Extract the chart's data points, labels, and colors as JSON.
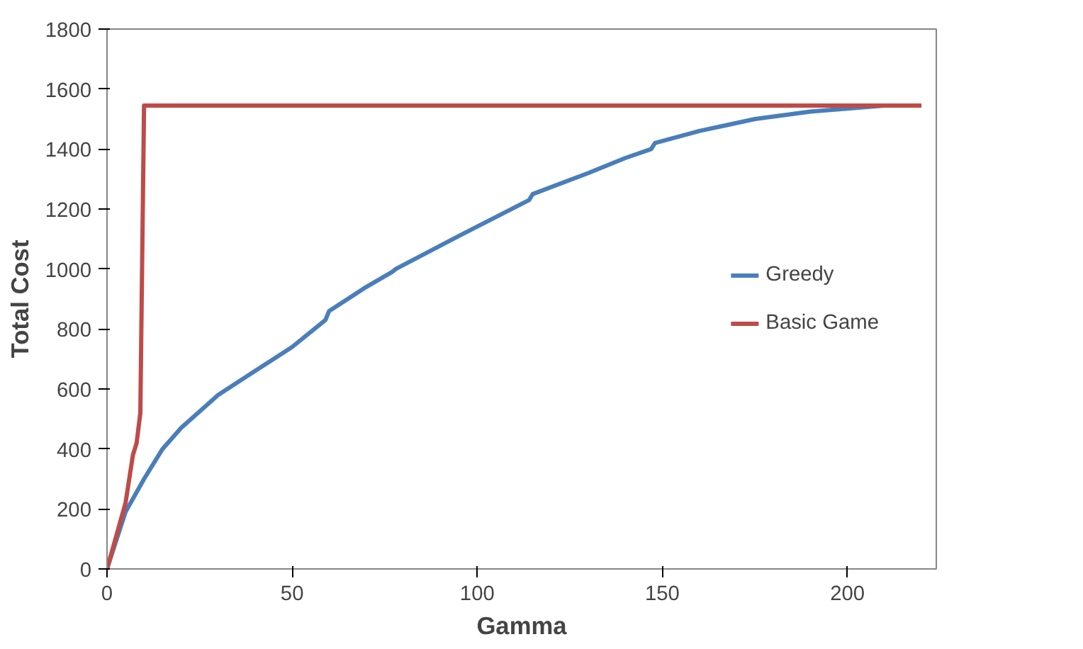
{
  "chart_data": {
    "type": "line",
    "xlabel": "Gamma",
    "ylabel": "Total Cost",
    "xlim": [
      0,
      224
    ],
    "ylim": [
      0,
      1800
    ],
    "xticks": [
      0,
      50,
      100,
      150,
      200
    ],
    "yticks": [
      0,
      200,
      400,
      600,
      800,
      1000,
      1200,
      1400,
      1600,
      1800
    ],
    "grid": false,
    "legend": "right",
    "marker": "none",
    "line_style": "solid",
    "series": [
      {
        "name": "Greedy",
        "color": "#4a7ebb",
        "x": [
          0,
          5,
          10,
          15,
          20,
          30,
          40,
          50,
          59,
          60,
          70,
          77,
          78,
          95,
          114,
          115,
          130,
          140,
          147,
          148,
          160,
          175,
          190,
          210
        ],
        "values": [
          0,
          190,
          300,
          400,
          470,
          580,
          660,
          740,
          830,
          860,
          940,
          990,
          1000,
          1110,
          1230,
          1250,
          1320,
          1370,
          1400,
          1420,
          1460,
          1500,
          1525,
          1545
        ]
      },
      {
        "name": "Basic Game",
        "color": "#be4b48",
        "x": [
          0,
          5,
          7,
          8,
          9,
          10,
          220
        ],
        "values": [
          0,
          220,
          380,
          420,
          520,
          1545,
          1545
        ]
      }
    ]
  }
}
